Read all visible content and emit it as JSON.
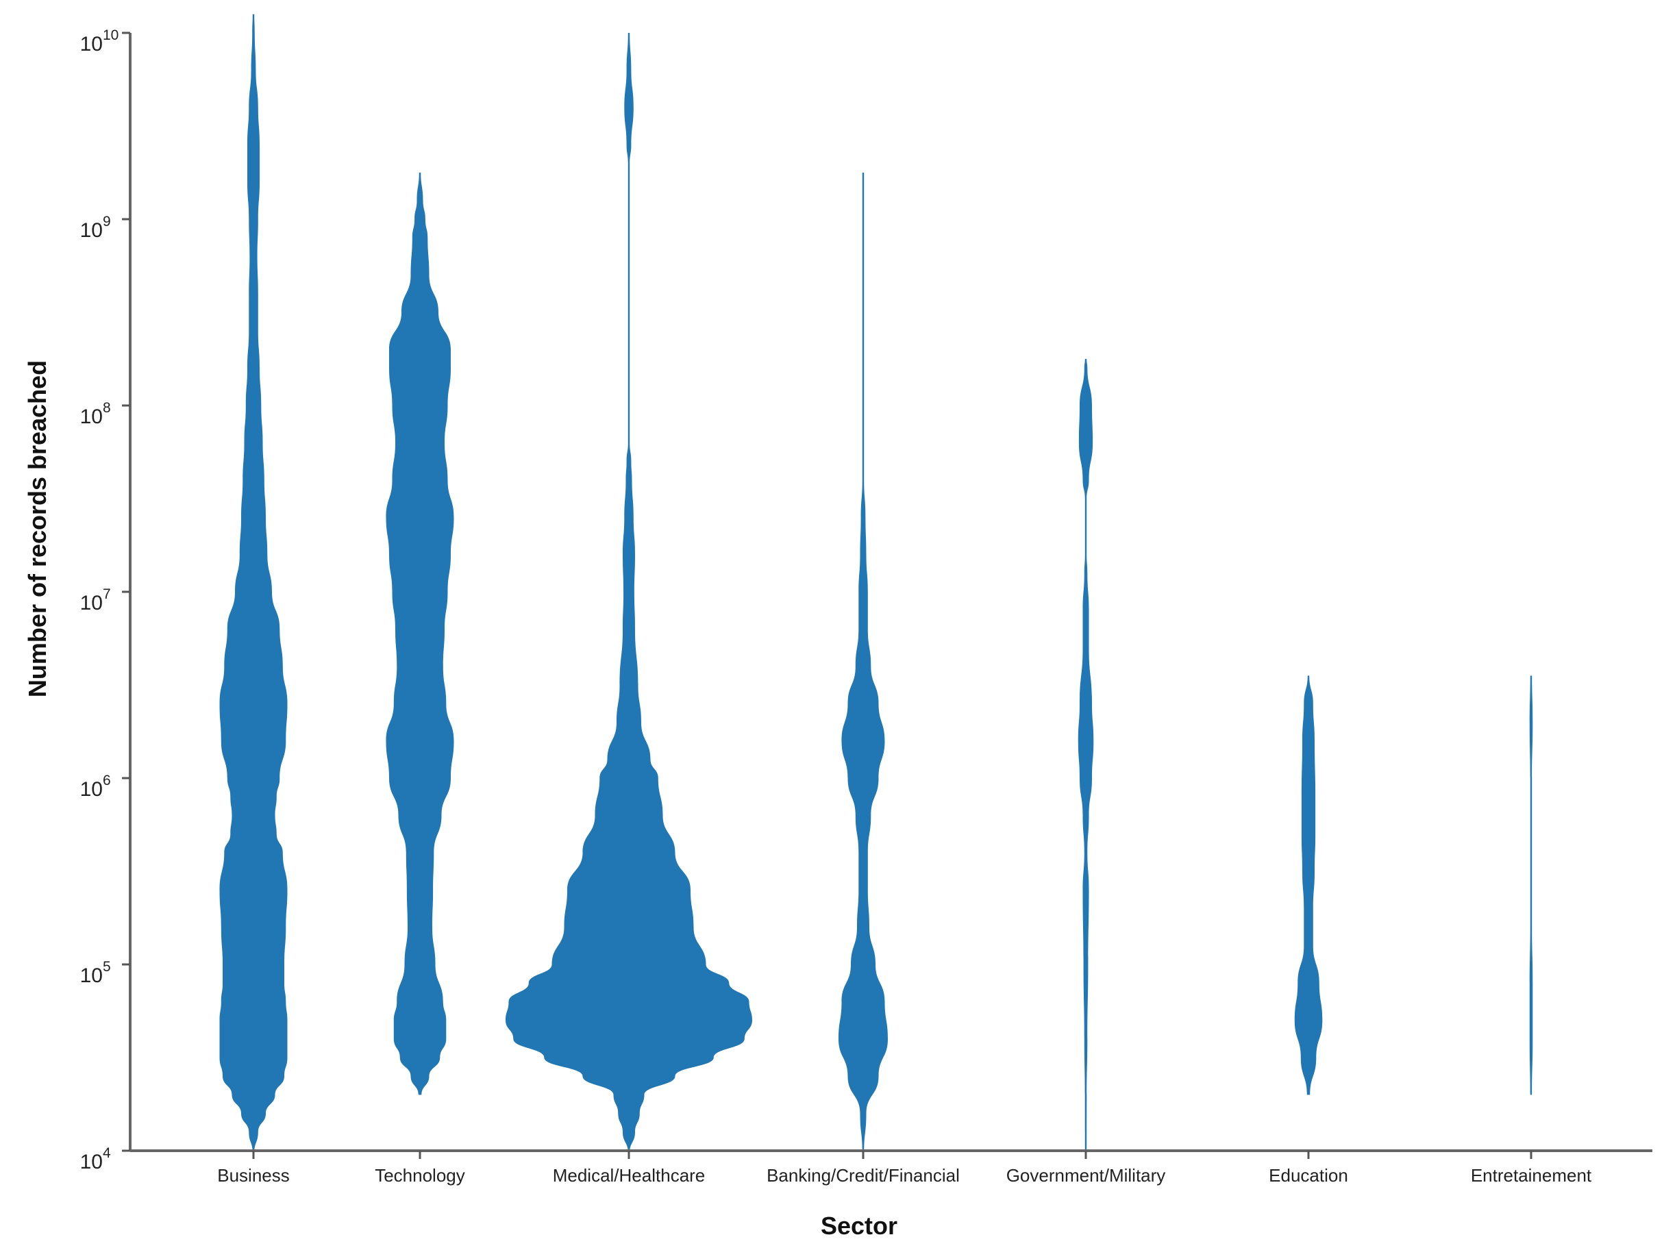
{
  "chart_data": {
    "type": "violin",
    "xlabel": "Sector",
    "ylabel": "Number of records breached",
    "yscale": "log",
    "ylim": [
      10000,
      10000000000
    ],
    "yticks": [
      {
        "value": 10000,
        "base": "10",
        "exp": "4"
      },
      {
        "value": 100000,
        "base": "10",
        "exp": "5"
      },
      {
        "value": 1000000,
        "base": "10",
        "exp": "6"
      },
      {
        "value": 10000000,
        "base": "10",
        "exp": "7"
      },
      {
        "value": 100000000,
        "base": "10",
        "exp": "8"
      },
      {
        "value": 1000000000,
        "base": "10",
        "exp": "9"
      },
      {
        "value": 10000000000,
        "base": "10",
        "exp": "10"
      }
    ],
    "grid": false,
    "fill_color": "#2077b4",
    "categories": [
      "Business",
      "Technology",
      "Medical/Healthcare",
      "Banking/Credit/Financial",
      "Government/Military",
      "Education",
      "Entretainement"
    ],
    "series": [
      {
        "category": "Business",
        "density": [
          [
            3.99,
            0.002
          ],
          [
            4.1,
            0.03
          ],
          [
            4.2,
            0.08
          ],
          [
            4.3,
            0.14
          ],
          [
            4.4,
            0.2
          ],
          [
            4.5,
            0.22
          ],
          [
            4.6,
            0.22
          ],
          [
            4.7,
            0.22
          ],
          [
            4.8,
            0.21
          ],
          [
            4.9,
            0.2
          ],
          [
            5.0,
            0.2
          ],
          [
            5.2,
            0.21
          ],
          [
            5.4,
            0.22
          ],
          [
            5.6,
            0.19
          ],
          [
            5.7,
            0.15
          ],
          [
            5.8,
            0.14
          ],
          [
            5.9,
            0.15
          ],
          [
            6.0,
            0.17
          ],
          [
            6.2,
            0.21
          ],
          [
            6.4,
            0.22
          ],
          [
            6.6,
            0.19
          ],
          [
            6.8,
            0.17
          ],
          [
            7.0,
            0.12
          ],
          [
            7.2,
            0.09
          ],
          [
            7.4,
            0.08
          ],
          [
            7.6,
            0.07
          ],
          [
            7.8,
            0.06
          ],
          [
            8.0,
            0.05
          ],
          [
            8.2,
            0.04
          ],
          [
            8.4,
            0.03
          ],
          [
            8.6,
            0.03
          ],
          [
            8.8,
            0.025
          ],
          [
            9.0,
            0.03
          ],
          [
            9.2,
            0.04
          ],
          [
            9.4,
            0.04
          ],
          [
            9.6,
            0.03
          ],
          [
            9.8,
            0.015
          ],
          [
            10.0,
            0.008
          ],
          [
            10.1,
            0.002
          ]
        ]
      },
      {
        "category": "Technology",
        "density": [
          [
            4.3,
            0.01
          ],
          [
            4.4,
            0.06
          ],
          [
            4.5,
            0.13
          ],
          [
            4.6,
            0.17
          ],
          [
            4.7,
            0.17
          ],
          [
            4.8,
            0.15
          ],
          [
            5.0,
            0.1
          ],
          [
            5.2,
            0.08
          ],
          [
            5.4,
            0.085
          ],
          [
            5.6,
            0.09
          ],
          [
            5.8,
            0.14
          ],
          [
            6.0,
            0.2
          ],
          [
            6.2,
            0.22
          ],
          [
            6.4,
            0.17
          ],
          [
            6.6,
            0.15
          ],
          [
            6.8,
            0.16
          ],
          [
            7.0,
            0.18
          ],
          [
            7.2,
            0.2
          ],
          [
            7.4,
            0.22
          ],
          [
            7.6,
            0.18
          ],
          [
            7.8,
            0.16
          ],
          [
            8.0,
            0.18
          ],
          [
            8.2,
            0.2
          ],
          [
            8.3,
            0.2
          ],
          [
            8.5,
            0.12
          ],
          [
            8.7,
            0.06
          ],
          [
            8.9,
            0.05
          ],
          [
            9.0,
            0.035
          ],
          [
            9.1,
            0.02
          ],
          [
            9.25,
            0.002
          ]
        ]
      },
      {
        "category": "Medical/Healthcare",
        "density": [
          [
            3.99,
            0.002
          ],
          [
            4.1,
            0.04
          ],
          [
            4.2,
            0.07
          ],
          [
            4.3,
            0.1
          ],
          [
            4.4,
            0.3
          ],
          [
            4.5,
            0.55
          ],
          [
            4.6,
            0.75
          ],
          [
            4.7,
            0.8
          ],
          [
            4.8,
            0.78
          ],
          [
            4.9,
            0.65
          ],
          [
            5.0,
            0.5
          ],
          [
            5.2,
            0.42
          ],
          [
            5.4,
            0.4
          ],
          [
            5.6,
            0.3
          ],
          [
            5.8,
            0.22
          ],
          [
            6.0,
            0.19
          ],
          [
            6.1,
            0.14
          ],
          [
            6.3,
            0.08
          ],
          [
            6.5,
            0.06
          ],
          [
            6.8,
            0.04
          ],
          [
            7.0,
            0.035
          ],
          [
            7.2,
            0.04
          ],
          [
            7.4,
            0.03
          ],
          [
            7.6,
            0.02
          ],
          [
            7.7,
            0.015
          ],
          [
            7.8,
            0.002
          ],
          [
            9.3,
            0.002
          ],
          [
            9.4,
            0.015
          ],
          [
            9.6,
            0.03
          ],
          [
            9.8,
            0.015
          ],
          [
            10.0,
            0.004
          ]
        ]
      },
      {
        "category": "Banking/Credit/Financial",
        "density": [
          [
            3.99,
            0.002
          ],
          [
            4.2,
            0.02
          ],
          [
            4.4,
            0.1
          ],
          [
            4.6,
            0.16
          ],
          [
            4.8,
            0.14
          ],
          [
            5.0,
            0.08
          ],
          [
            5.2,
            0.04
          ],
          [
            5.4,
            0.03
          ],
          [
            5.6,
            0.03
          ],
          [
            5.8,
            0.05
          ],
          [
            6.0,
            0.1
          ],
          [
            6.2,
            0.14
          ],
          [
            6.4,
            0.1
          ],
          [
            6.6,
            0.05
          ],
          [
            6.8,
            0.03
          ],
          [
            7.0,
            0.03
          ],
          [
            7.2,
            0.02
          ],
          [
            7.4,
            0.015
          ],
          [
            7.6,
            0.005
          ],
          [
            8.0,
            0.004
          ],
          [
            9.0,
            0.004
          ],
          [
            9.25,
            0.002
          ]
        ]
      },
      {
        "category": "Government/Military",
        "density": [
          [
            3.99,
            0.002
          ],
          [
            4.3,
            0.006
          ],
          [
            4.6,
            0.01
          ],
          [
            5.0,
            0.015
          ],
          [
            5.4,
            0.02
          ],
          [
            5.6,
            0.01
          ],
          [
            5.8,
            0.02
          ],
          [
            6.0,
            0.04
          ],
          [
            6.2,
            0.05
          ],
          [
            6.4,
            0.04
          ],
          [
            6.7,
            0.02
          ],
          [
            6.9,
            0.02
          ],
          [
            7.1,
            0.01
          ],
          [
            7.2,
            0.002
          ],
          [
            7.5,
            0.002
          ],
          [
            7.6,
            0.02
          ],
          [
            7.8,
            0.045
          ],
          [
            8.0,
            0.04
          ],
          [
            8.2,
            0.01
          ],
          [
            8.25,
            0.002
          ]
        ]
      },
      {
        "category": "Education",
        "density": [
          [
            4.3,
            0.01
          ],
          [
            4.5,
            0.05
          ],
          [
            4.7,
            0.09
          ],
          [
            4.9,
            0.07
          ],
          [
            5.1,
            0.03
          ],
          [
            5.3,
            0.03
          ],
          [
            5.5,
            0.04
          ],
          [
            5.7,
            0.045
          ],
          [
            5.9,
            0.045
          ],
          [
            6.2,
            0.04
          ],
          [
            6.4,
            0.03
          ],
          [
            6.55,
            0.002
          ]
        ]
      },
      {
        "category": "Entretainement",
        "density": [
          [
            4.3,
            0.002
          ],
          [
            4.6,
            0.01
          ],
          [
            4.9,
            0.01
          ],
          [
            5.2,
            0.004
          ],
          [
            5.25,
            0.001
          ],
          [
            5.9,
            0.001
          ],
          [
            6.0,
            0.004
          ],
          [
            6.3,
            0.01
          ],
          [
            6.55,
            0.002
          ]
        ]
      }
    ]
  }
}
